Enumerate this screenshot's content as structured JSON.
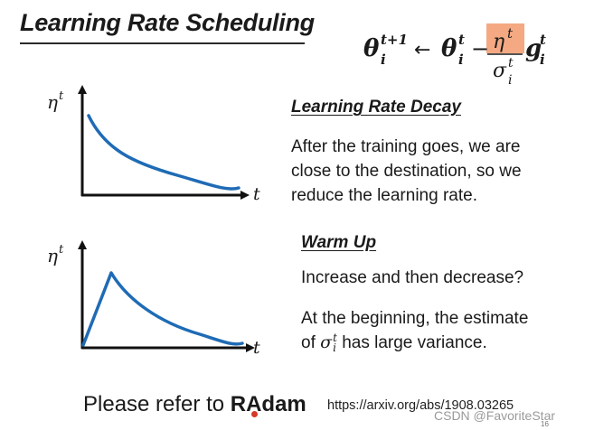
{
  "slide": {
    "title": "Learning Rate Scheduling",
    "formula": {
      "lhs_base": "θ",
      "lhs_sub": "i",
      "lhs_sup": "t+1",
      "arrow": "←",
      "rhs_base": "θ",
      "rhs_sub": "i",
      "rhs_sup": "t",
      "minus": "−",
      "numerator_base": "η",
      "numerator_sup": "t",
      "denominator_base": "σ",
      "denominator_sub": "i",
      "denominator_sup": "t",
      "g_base": "g",
      "g_sub": "i",
      "g_sup": "t",
      "highlight_color": "#f4a982"
    },
    "decay_plot": {
      "y_label": "η",
      "y_label_sup": "t",
      "x_label": "t",
      "curve_color": "#1f6bb5"
    },
    "warmup_plot": {
      "y_label": "η",
      "y_label_sup": "t",
      "x_label": "t",
      "curve_color": "#1f6bb5"
    },
    "decay": {
      "heading": "Learning Rate Decay",
      "lines": [
        "After the training goes, we are",
        "close to the destination, so we",
        "reduce the learning rate."
      ]
    },
    "warmup": {
      "heading": "Warm Up",
      "question": "Increase and then decrease?",
      "lines_1": "At the beginning, the estimate",
      "lines_2_prefix": "of ",
      "sigma_base": "σ",
      "sigma_sub": "i",
      "sigma_sup": "t",
      "lines_2_suffix": " has large variance."
    },
    "refer": {
      "prefix": "Please refer to ",
      "name": "RAdam"
    },
    "url": "https://arxiv.org/abs/1908.03265",
    "watermark": "CSDN @FavoriteStar",
    "page_number": "16"
  }
}
